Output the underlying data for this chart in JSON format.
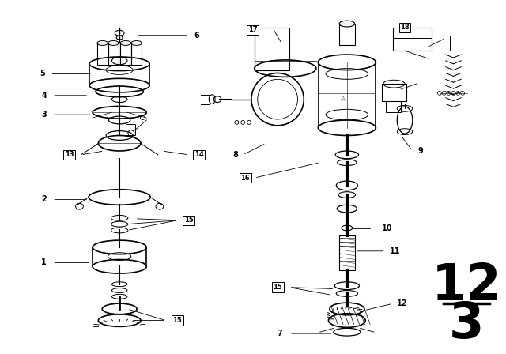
{
  "background_color": "#ffffff",
  "diagram_number": "12",
  "diagram_sub": "3",
  "fig_w": 6.4,
  "fig_h": 4.48,
  "dpi": 100
}
